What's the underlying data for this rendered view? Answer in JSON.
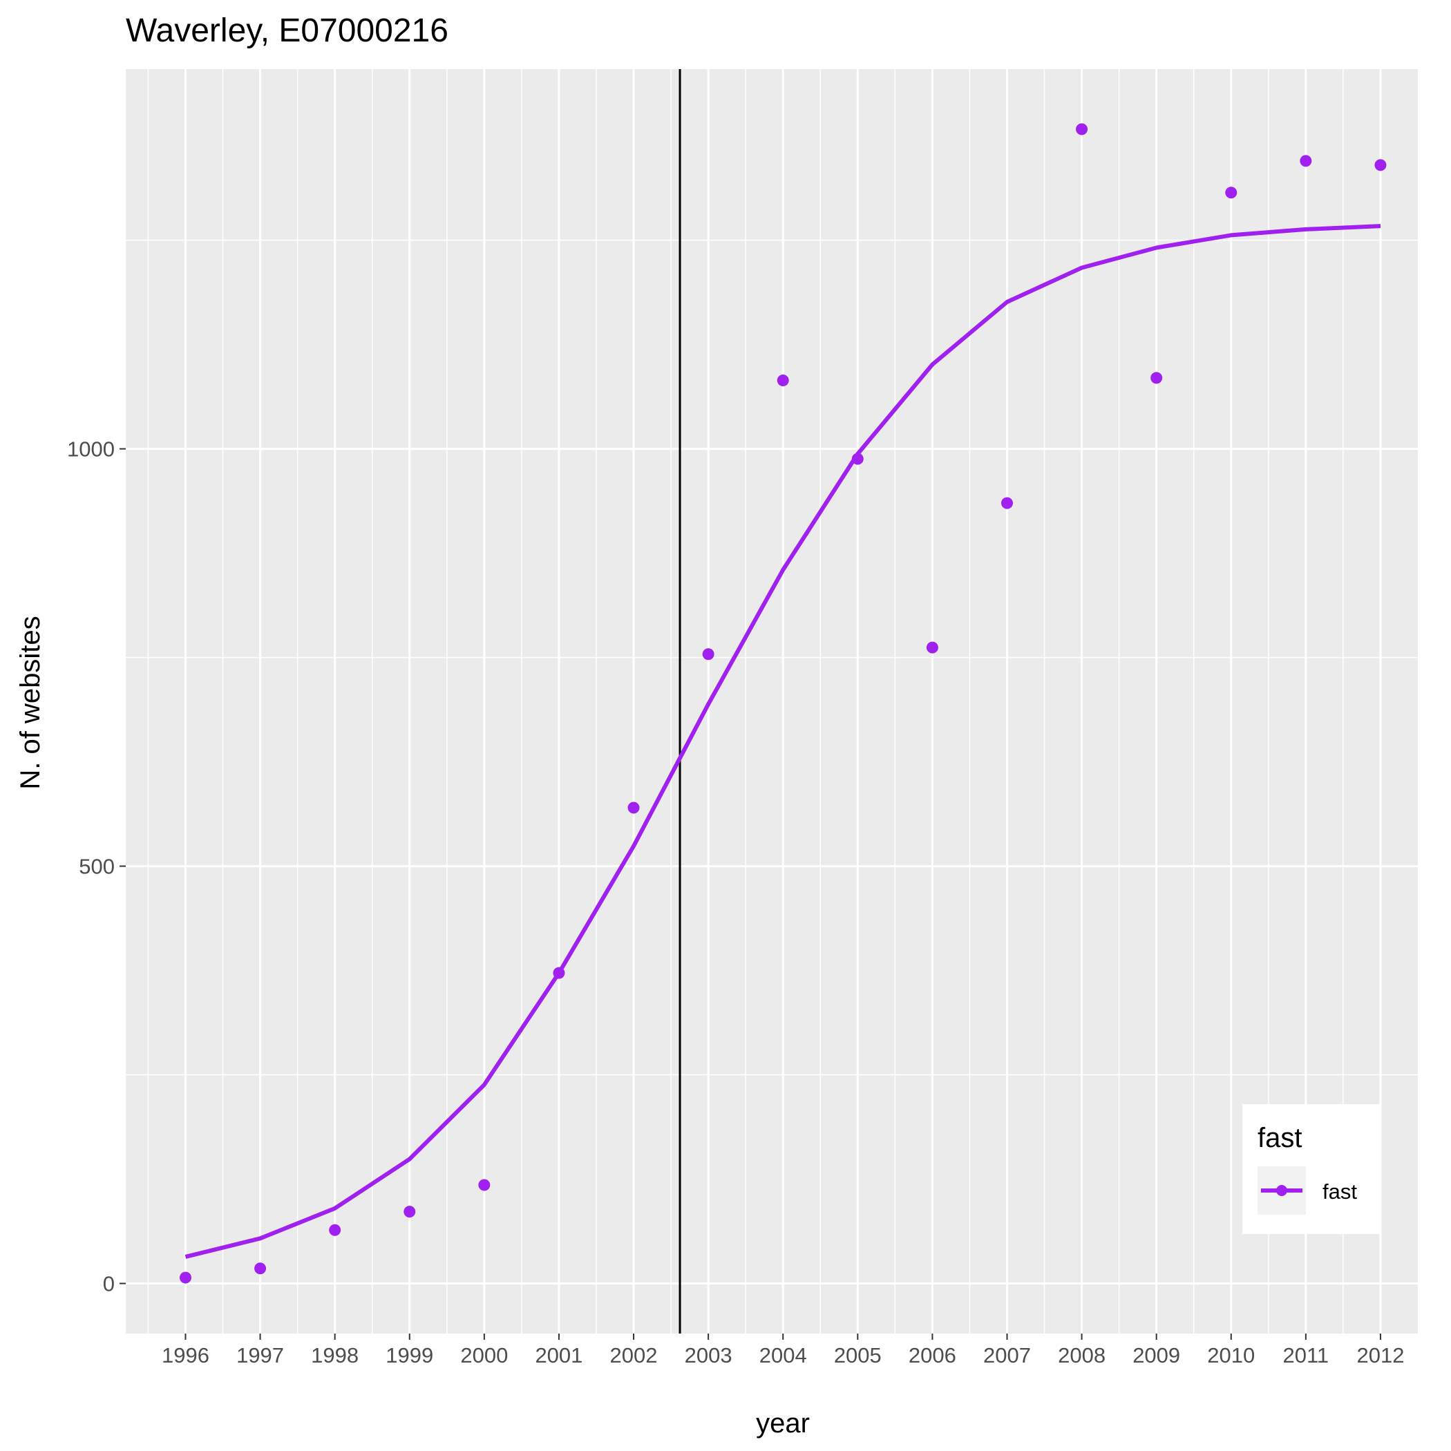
{
  "chart_data": {
    "type": "line",
    "title": "Waverley, E07000216",
    "xlabel": "year",
    "ylabel": "N. of websites",
    "x": [
      1996,
      1997,
      1998,
      1999,
      2000,
      2001,
      2002,
      2003,
      2004,
      2005,
      2006,
      2007,
      2008,
      2009,
      2010,
      2011,
      2012
    ],
    "x_tick_labels": [
      "1996",
      "1997",
      "1998",
      "1999",
      "2000",
      "2001",
      "2002",
      "2003",
      "2004",
      "2005",
      "2006",
      "2007",
      "2008",
      "2009",
      "2010",
      "2011",
      "2012"
    ],
    "y_ticks": [
      0,
      500,
      1000
    ],
    "y_tick_labels": [
      "0",
      "500",
      "1000"
    ],
    "xlim": [
      1995.2,
      2012.5
    ],
    "ylim": [
      -60,
      1455
    ],
    "grid": true,
    "vline_x": 2002.62,
    "series": [
      {
        "name": "fast",
        "color": "#a020f0",
        "points": [
          7,
          18,
          64,
          86,
          118,
          372,
          570,
          754,
          1082,
          988,
          762,
          935,
          1383,
          1085,
          1307,
          1345,
          1340
        ],
        "fitted": [
          32,
          54,
          90,
          149,
          238,
          372,
          524,
          694,
          855,
          994,
          1101,
          1176,
          1217,
          1241,
          1256,
          1263,
          1267
        ]
      }
    ],
    "legend": {
      "position": "bottom-right",
      "title": "fast",
      "entries": [
        "fast"
      ]
    },
    "colors": {
      "panel": "#ebebeb",
      "grid": "#ffffff",
      "vline": "#000000"
    }
  }
}
